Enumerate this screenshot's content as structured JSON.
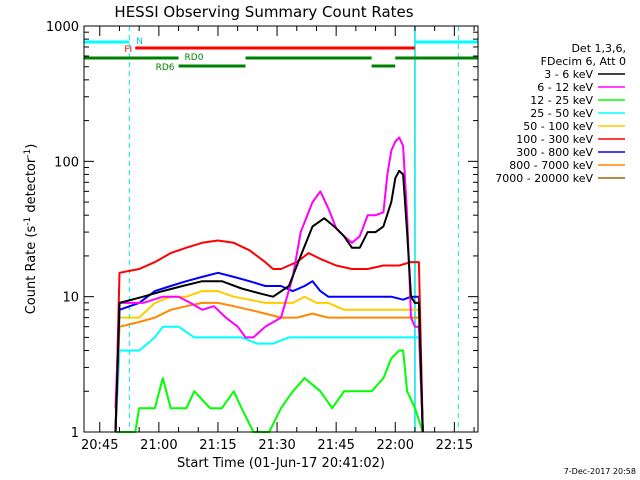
{
  "chart_data": {
    "type": "line",
    "title": "HESSI Observing Summary Count Rates",
    "xlabel": "Start Time (01-Jun-17 20:41:02)",
    "ylabel": "Count Rate (s",
    "ylabel_sup1": "-1",
    "ylabel_mid": " detector",
    "ylabel_sup2": "-1",
    "ylabel_end": ")",
    "x_unit": "minutes after 20:41:02",
    "xlim": [
      0,
      100
    ],
    "ylim": [
      1,
      1000
    ],
    "yscale": "log",
    "x_ticks": [
      {
        "t": 4,
        "label": "20:45"
      },
      {
        "t": 19,
        "label": "21:00"
      },
      {
        "t": 34,
        "label": "21:15"
      },
      {
        "t": 49,
        "label": "21:30"
      },
      {
        "t": 64,
        "label": "21:45"
      },
      {
        "t": 79,
        "label": "22:00"
      },
      {
        "t": 94,
        "label": "22:15"
      }
    ],
    "y_ticks": [
      {
        "v": 1,
        "label": "1"
      },
      {
        "v": 10,
        "label": "10"
      },
      {
        "v": 100,
        "label": "100"
      },
      {
        "v": 1000,
        "label": "1000"
      }
    ],
    "legend_header": [
      "Det 1,3,6,",
      "FDecim 6, Att 0"
    ],
    "legend_position": "right",
    "series": [
      {
        "name": "3 - 6 keV",
        "color": "#000000",
        "points": [
          [
            8,
            1
          ],
          [
            9,
            9
          ],
          [
            15,
            10
          ],
          [
            20,
            11
          ],
          [
            25,
            12
          ],
          [
            30,
            13
          ],
          [
            35,
            13
          ],
          [
            40,
            11.5
          ],
          [
            45,
            10.5
          ],
          [
            48,
            10
          ],
          [
            52,
            12
          ],
          [
            55,
            20
          ],
          [
            58,
            33
          ],
          [
            61,
            38
          ],
          [
            64,
            32
          ],
          [
            66,
            28
          ],
          [
            68,
            23
          ],
          [
            70,
            23
          ],
          [
            72,
            30
          ],
          [
            74,
            30
          ],
          [
            76,
            33
          ],
          [
            78,
            50
          ],
          [
            79,
            75
          ],
          [
            80,
            85
          ],
          [
            81,
            80
          ],
          [
            82,
            30
          ],
          [
            83,
            10
          ],
          [
            84,
            9
          ],
          [
            85,
            9
          ],
          [
            86,
            1
          ]
        ]
      },
      {
        "name": "6 - 12 keV",
        "color": "#ff00ff",
        "points": [
          [
            8,
            1.5
          ],
          [
            9,
            9
          ],
          [
            15,
            9
          ],
          [
            20,
            10
          ],
          [
            24,
            10
          ],
          [
            27,
            9
          ],
          [
            30,
            8
          ],
          [
            33,
            8.5
          ],
          [
            36,
            7
          ],
          [
            39,
            6
          ],
          [
            41,
            5
          ],
          [
            43,
            5
          ],
          [
            46,
            6
          ],
          [
            50,
            7
          ],
          [
            53,
            14
          ],
          [
            55,
            30
          ],
          [
            58,
            50
          ],
          [
            60,
            60
          ],
          [
            62,
            45
          ],
          [
            64,
            32
          ],
          [
            66,
            28
          ],
          [
            68,
            25
          ],
          [
            70,
            28
          ],
          [
            72,
            40
          ],
          [
            74,
            40
          ],
          [
            76,
            42
          ],
          [
            77,
            80
          ],
          [
            78,
            120
          ],
          [
            79,
            140
          ],
          [
            80,
            150
          ],
          [
            81,
            130
          ],
          [
            82,
            40
          ],
          [
            83,
            7
          ],
          [
            84,
            6
          ],
          [
            85,
            6
          ],
          [
            86,
            1
          ]
        ]
      },
      {
        "name": "12 - 25 keV",
        "color": "#00ff00",
        "points": [
          [
            8,
            1
          ],
          [
            11,
            1
          ],
          [
            13,
            1
          ],
          [
            14,
            1.5
          ],
          [
            18,
            1.5
          ],
          [
            20,
            2.5
          ],
          [
            22,
            1.5
          ],
          [
            26,
            1.5
          ],
          [
            28,
            2
          ],
          [
            32,
            1.5
          ],
          [
            35,
            1.5
          ],
          [
            38,
            2
          ],
          [
            40,
            1.5
          ],
          [
            43,
            1
          ],
          [
            47,
            1
          ],
          [
            50,
            1.5
          ],
          [
            53,
            2
          ],
          [
            56,
            2.5
          ],
          [
            60,
            2
          ],
          [
            63,
            1.5
          ],
          [
            66,
            2
          ],
          [
            70,
            2
          ],
          [
            73,
            2
          ],
          [
            76,
            2.5
          ],
          [
            78,
            3.5
          ],
          [
            80,
            4
          ],
          [
            81,
            4
          ],
          [
            82,
            2
          ],
          [
            84,
            1.5
          ],
          [
            86,
            1
          ]
        ]
      },
      {
        "name": "25 - 50 keV",
        "color": "#00ffff",
        "points": [
          [
            8,
            1
          ],
          [
            9,
            4
          ],
          [
            14,
            4
          ],
          [
            18,
            5
          ],
          [
            20,
            6
          ],
          [
            24,
            6
          ],
          [
            28,
            5
          ],
          [
            32,
            5
          ],
          [
            36,
            5
          ],
          [
            40,
            5
          ],
          [
            44,
            4.5
          ],
          [
            48,
            4.5
          ],
          [
            52,
            5
          ],
          [
            56,
            5
          ],
          [
            60,
            5
          ],
          [
            64,
            5
          ],
          [
            68,
            5
          ],
          [
            72,
            5
          ],
          [
            76,
            5
          ],
          [
            80,
            5
          ],
          [
            83,
            5
          ],
          [
            85,
            5
          ],
          [
            86,
            1
          ]
        ]
      },
      {
        "name": "50 - 100 keV",
        "color": "#ffcc00",
        "points": [
          [
            8,
            1
          ],
          [
            9,
            7
          ],
          [
            14,
            7
          ],
          [
            18,
            9
          ],
          [
            22,
            10
          ],
          [
            26,
            10
          ],
          [
            30,
            11
          ],
          [
            34,
            11
          ],
          [
            38,
            10
          ],
          [
            42,
            9.5
          ],
          [
            46,
            9
          ],
          [
            50,
            9
          ],
          [
            53,
            9
          ],
          [
            56,
            10
          ],
          [
            59,
            9
          ],
          [
            62,
            9
          ],
          [
            66,
            8
          ],
          [
            70,
            8
          ],
          [
            74,
            8
          ],
          [
            78,
            8
          ],
          [
            82,
            8
          ],
          [
            85,
            8
          ],
          [
            86,
            1
          ]
        ]
      },
      {
        "name": "100 - 300 keV",
        "color": "#ff0000",
        "points": [
          [
            8,
            1
          ],
          [
            9,
            15
          ],
          [
            14,
            16
          ],
          [
            18,
            18
          ],
          [
            22,
            21
          ],
          [
            26,
            23
          ],
          [
            30,
            25
          ],
          [
            34,
            26
          ],
          [
            38,
            25
          ],
          [
            42,
            22
          ],
          [
            46,
            18
          ],
          [
            48,
            16
          ],
          [
            50,
            16
          ],
          [
            52,
            17
          ],
          [
            54,
            18
          ],
          [
            57,
            21
          ],
          [
            60,
            19
          ],
          [
            64,
            17
          ],
          [
            68,
            16
          ],
          [
            72,
            16
          ],
          [
            76,
            17
          ],
          [
            80,
            17
          ],
          [
            83,
            18
          ],
          [
            85,
            18
          ],
          [
            86,
            1
          ]
        ]
      },
      {
        "name": "300 - 800 keV",
        "color": "#0000ff",
        "points": [
          [
            8,
            1
          ],
          [
            9,
            8
          ],
          [
            14,
            9
          ],
          [
            18,
            11
          ],
          [
            22,
            12
          ],
          [
            26,
            13
          ],
          [
            30,
            14
          ],
          [
            34,
            15
          ],
          [
            38,
            14
          ],
          [
            42,
            13
          ],
          [
            46,
            12
          ],
          [
            50,
            12
          ],
          [
            53,
            11
          ],
          [
            56,
            12
          ],
          [
            58,
            13
          ],
          [
            60,
            11
          ],
          [
            62,
            10
          ],
          [
            66,
            10
          ],
          [
            70,
            10
          ],
          [
            74,
            10
          ],
          [
            78,
            10
          ],
          [
            81,
            9.5
          ],
          [
            83,
            10
          ],
          [
            85,
            10
          ],
          [
            86,
            1
          ]
        ]
      },
      {
        "name": "800 - 7000 keV",
        "color": "#ff8800",
        "points": [
          [
            8,
            1
          ],
          [
            9,
            6
          ],
          [
            14,
            6.5
          ],
          [
            18,
            7
          ],
          [
            22,
            8
          ],
          [
            26,
            8.5
          ],
          [
            30,
            9
          ],
          [
            34,
            9
          ],
          [
            38,
            8.5
          ],
          [
            42,
            8
          ],
          [
            46,
            7.5
          ],
          [
            50,
            7
          ],
          [
            54,
            7
          ],
          [
            58,
            7.5
          ],
          [
            62,
            7
          ],
          [
            66,
            7
          ],
          [
            70,
            7
          ],
          [
            74,
            7
          ],
          [
            78,
            7
          ],
          [
            82,
            7
          ],
          [
            85,
            7
          ],
          [
            86,
            1
          ]
        ]
      },
      {
        "name": "7000 - 20000 keV",
        "color": "#996600",
        "points": []
      }
    ],
    "annotations": {
      "night": [
        {
          "text": "N",
          "from": 0,
          "to": 11.5
        },
        {
          "text": "",
          "from": 84,
          "to": 100
        }
      ],
      "flare": {
        "text": "FI",
        "from": 13,
        "to": 84
      },
      "rd0": {
        "text": "RD0",
        "segments": [
          [
            0,
            24
          ],
          [
            41,
            73
          ],
          [
            79,
            100
          ]
        ]
      },
      "rd6": {
        "text": "RD6",
        "segments": [
          [
            24,
            41
          ],
          [
            73,
            79
          ]
        ]
      },
      "verticals_dashed": [
        11.5,
        95
      ],
      "verticals_solid": [
        84
      ]
    },
    "footer": "7-Dec-2017 20:58"
  }
}
